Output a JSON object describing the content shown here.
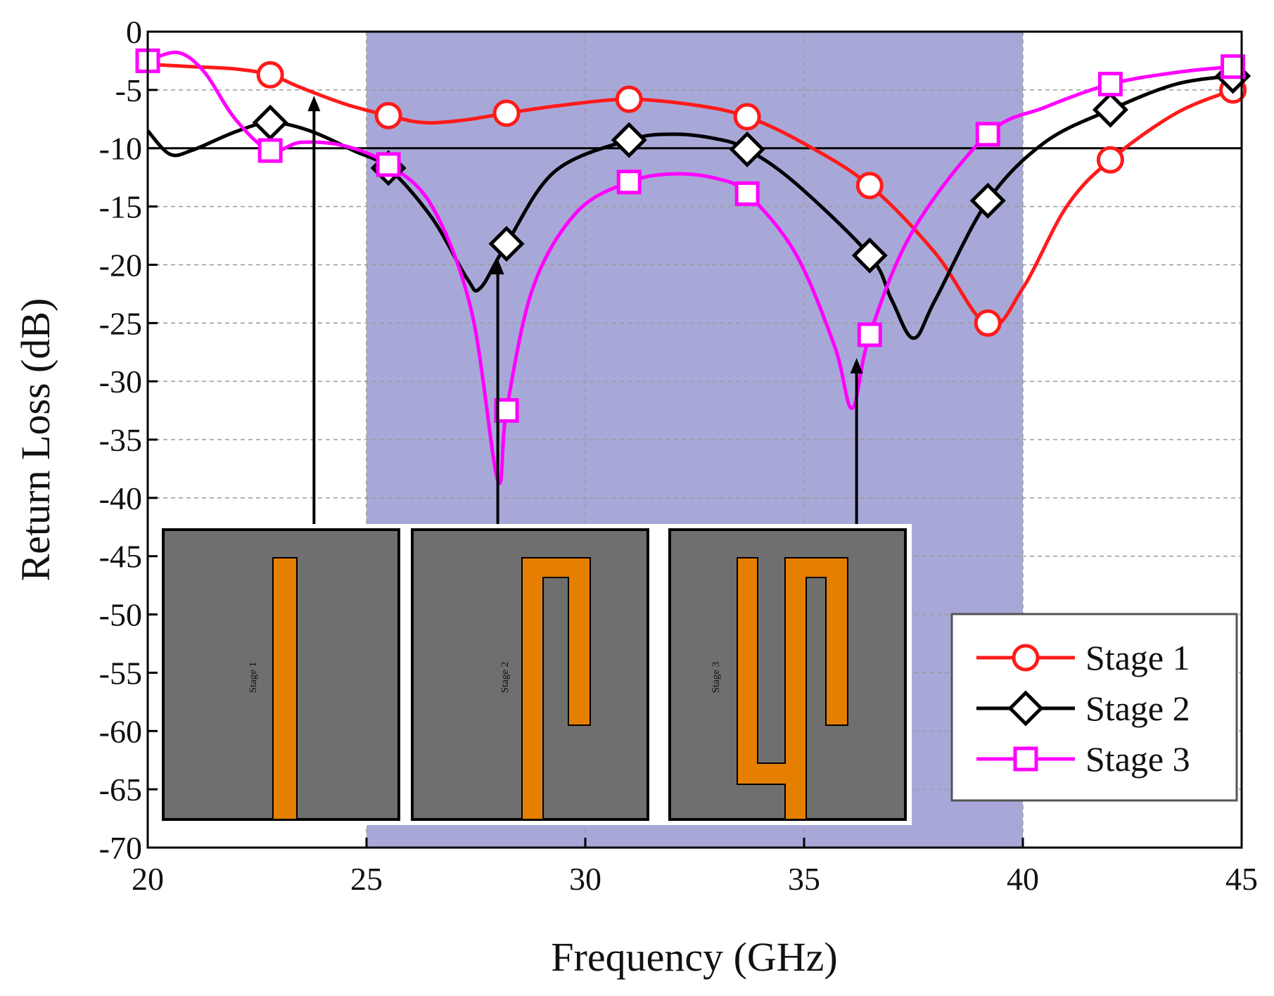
{
  "chart_data": {
    "type": "line",
    "title": "",
    "xlabel": "Frequency (GHz)",
    "ylabel": "Return Loss (dB)",
    "xlim": [
      20,
      45
    ],
    "ylim": [
      -70,
      0
    ],
    "xticks": [
      20,
      25,
      30,
      35,
      40,
      45
    ],
    "yticks": [
      0,
      -5,
      -10,
      -15,
      -20,
      -25,
      -30,
      -35,
      -40,
      -45,
      -50,
      -55,
      -60,
      -65,
      -70
    ],
    "grid": true,
    "legend_position": "bottom-right",
    "shaded_band": {
      "x_start": 25,
      "x_end": 40,
      "color": "#a8a8d8"
    },
    "reference_line": {
      "y": -10,
      "color": "#000000"
    },
    "series": [
      {
        "name": "Stage 1",
        "color": "#ff1a1a",
        "marker": "circle",
        "curve": [
          [
            20,
            -2.8
          ],
          [
            21,
            -3.0
          ],
          [
            22,
            -3.2
          ],
          [
            22.8,
            -3.7
          ],
          [
            23.5,
            -4.8
          ],
          [
            24.5,
            -6.2
          ],
          [
            25.5,
            -7.2
          ],
          [
            26.3,
            -7.8
          ],
          [
            27.2,
            -7.6
          ],
          [
            28.2,
            -7.0
          ],
          [
            29.5,
            -6.3
          ],
          [
            31,
            -5.8
          ],
          [
            32.5,
            -6.3
          ],
          [
            33.7,
            -7.3
          ],
          [
            35,
            -9.6
          ],
          [
            36.5,
            -13.2
          ],
          [
            38,
            -19
          ],
          [
            39.2,
            -25.2
          ],
          [
            40,
            -22
          ],
          [
            41,
            -15
          ],
          [
            42,
            -11
          ],
          [
            43.5,
            -7
          ],
          [
            44.8,
            -5.0
          ]
        ],
        "markers": [
          [
            22.8,
            -3.7
          ],
          [
            25.5,
            -7.2
          ],
          [
            28.2,
            -7.0
          ],
          [
            31,
            -5.8
          ],
          [
            33.7,
            -7.3
          ],
          [
            36.5,
            -13.2
          ],
          [
            39.2,
            -25
          ],
          [
            42,
            -11
          ],
          [
            44.8,
            -5.0
          ]
        ]
      },
      {
        "name": "Stage 2",
        "color": "#000000",
        "marker": "diamond",
        "curve": [
          [
            20,
            -8.5
          ],
          [
            20.5,
            -10.5
          ],
          [
            21,
            -10.2
          ],
          [
            22,
            -8.6
          ],
          [
            22.8,
            -7.8
          ],
          [
            23.7,
            -8.5
          ],
          [
            24.7,
            -10.2
          ],
          [
            25.5,
            -11.7
          ],
          [
            26.5,
            -16
          ],
          [
            27.3,
            -21.2
          ],
          [
            27.6,
            -22
          ],
          [
            28.2,
            -18.2
          ],
          [
            29.3,
            -12
          ],
          [
            31,
            -9.3
          ],
          [
            32,
            -8.8
          ],
          [
            33,
            -9.2
          ],
          [
            33.7,
            -10.1
          ],
          [
            34.8,
            -13
          ],
          [
            36.5,
            -19.2
          ],
          [
            37,
            -23
          ],
          [
            37.5,
            -26.3
          ],
          [
            38,
            -23
          ],
          [
            39.2,
            -14.5
          ],
          [
            40.5,
            -9.5
          ],
          [
            42,
            -6.7
          ],
          [
            43.5,
            -4.5
          ],
          [
            44.8,
            -3.8
          ]
        ],
        "markers": [
          [
            22.8,
            -7.8
          ],
          [
            25.5,
            -11.7
          ],
          [
            28.2,
            -18.2
          ],
          [
            31,
            -9.3
          ],
          [
            33.7,
            -10.1
          ],
          [
            36.5,
            -19.2
          ],
          [
            39.2,
            -14.5
          ],
          [
            42,
            -6.7
          ],
          [
            44.8,
            -3.8
          ]
        ]
      },
      {
        "name": "Stage 3",
        "color": "#ff00ff",
        "marker": "square",
        "curve": [
          [
            20,
            -2.5
          ],
          [
            20.7,
            -1.8
          ],
          [
            21.3,
            -3.5
          ],
          [
            22,
            -7.5
          ],
          [
            22.8,
            -10.2
          ],
          [
            23.5,
            -9.5
          ],
          [
            24.5,
            -9.8
          ],
          [
            25.5,
            -11.4
          ],
          [
            26.5,
            -15
          ],
          [
            27.4,
            -24
          ],
          [
            28,
            -38.5
          ],
          [
            28.2,
            -32.5
          ],
          [
            28.8,
            -22
          ],
          [
            29.8,
            -15.5
          ],
          [
            31,
            -12.9
          ],
          [
            32,
            -12.2
          ],
          [
            33,
            -12.6
          ],
          [
            33.7,
            -13.9
          ],
          [
            34.8,
            -19
          ],
          [
            35.7,
            -27
          ],
          [
            36.1,
            -32.3
          ],
          [
            36.5,
            -26
          ],
          [
            37.5,
            -17
          ],
          [
            39.2,
            -8.8
          ],
          [
            40.5,
            -6.5
          ],
          [
            42,
            -4.5
          ],
          [
            43.5,
            -3.5
          ],
          [
            44.8,
            -3.0
          ]
        ],
        "markers": [
          [
            20,
            -2.5
          ],
          [
            22.8,
            -10.2
          ],
          [
            25.5,
            -11.4
          ],
          [
            28.2,
            -32.5
          ],
          [
            31,
            -12.9
          ],
          [
            33.7,
            -13.9
          ],
          [
            36.5,
            -26
          ],
          [
            39.2,
            -8.8
          ],
          [
            42,
            -4.5
          ],
          [
            44.8,
            -3.0
          ]
        ]
      }
    ],
    "annotations": [
      {
        "type": "arrow",
        "x": 23.8,
        "from_y": -42.5,
        "to_y": -5.5
      },
      {
        "type": "arrow",
        "x": 28.0,
        "from_y": -42.5,
        "to_y": -19.5
      },
      {
        "type": "arrow",
        "x": 36.2,
        "from_y": -42.5,
        "to_y": -28.0
      }
    ],
    "insets": [
      {
        "label": "Stage 1",
        "shape": "straight-strip"
      },
      {
        "label": "Stage 2",
        "shape": "folded-strip"
      },
      {
        "label": "Stage 3",
        "shape": "double-folded-strip"
      }
    ],
    "inset_colors": {
      "substrate": "#6f6f6f",
      "metal": "#e67e00"
    }
  }
}
